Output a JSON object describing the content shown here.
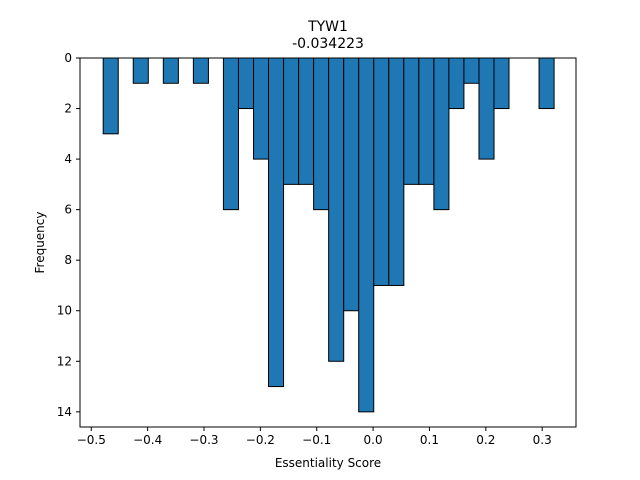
{
  "chart_data": {
    "type": "bar",
    "title": "TYW1",
    "subtitle": "-0.034223",
    "xlabel": "Essentiality Score",
    "ylabel": "Frequency",
    "xlim": [
      -0.52,
      0.36
    ],
    "ylim": [
      14.6,
      0
    ],
    "y_inverted": true,
    "grid": false,
    "bar_color": "#1f77b4",
    "edge_color": "#000000",
    "bin_width": 0.0267,
    "xticks": [
      -0.5,
      -0.4,
      -0.3,
      -0.2,
      -0.1,
      0.0,
      0.1,
      0.2,
      0.3
    ],
    "xtick_labels": [
      "−0.5",
      "−0.4",
      "−0.3",
      "−0.2",
      "−0.1",
      "0.0",
      "0.1",
      "0.2",
      "0.3"
    ],
    "yticks": [
      0,
      2,
      4,
      6,
      8,
      10,
      12,
      14
    ],
    "ytick_labels": [
      "0",
      "2",
      "4",
      "6",
      "8",
      "10",
      "12",
      "14"
    ],
    "bins": [
      {
        "x": -0.4655,
        "count": 3
      },
      {
        "x": -0.4122,
        "count": 1
      },
      {
        "x": -0.3588,
        "count": 1
      },
      {
        "x": -0.3055,
        "count": 1
      },
      {
        "x": -0.2522,
        "count": 6
      },
      {
        "x": -0.2255,
        "count": 2
      },
      {
        "x": -0.1988,
        "count": 4
      },
      {
        "x": -0.1722,
        "count": 13
      },
      {
        "x": -0.1455,
        "count": 5
      },
      {
        "x": -0.1188,
        "count": 5
      },
      {
        "x": -0.0922,
        "count": 6
      },
      {
        "x": -0.0655,
        "count": 12
      },
      {
        "x": -0.0388,
        "count": 10
      },
      {
        "x": -0.0122,
        "count": 14
      },
      {
        "x": 0.0145,
        "count": 9
      },
      {
        "x": 0.0412,
        "count": 9
      },
      {
        "x": 0.0678,
        "count": 5
      },
      {
        "x": 0.0945,
        "count": 5
      },
      {
        "x": 0.1212,
        "count": 6
      },
      {
        "x": 0.1478,
        "count": 2
      },
      {
        "x": 0.1745,
        "count": 1
      },
      {
        "x": 0.2012,
        "count": 4
      },
      {
        "x": 0.2278,
        "count": 2
      },
      {
        "x": 0.3078,
        "count": 2
      }
    ]
  }
}
